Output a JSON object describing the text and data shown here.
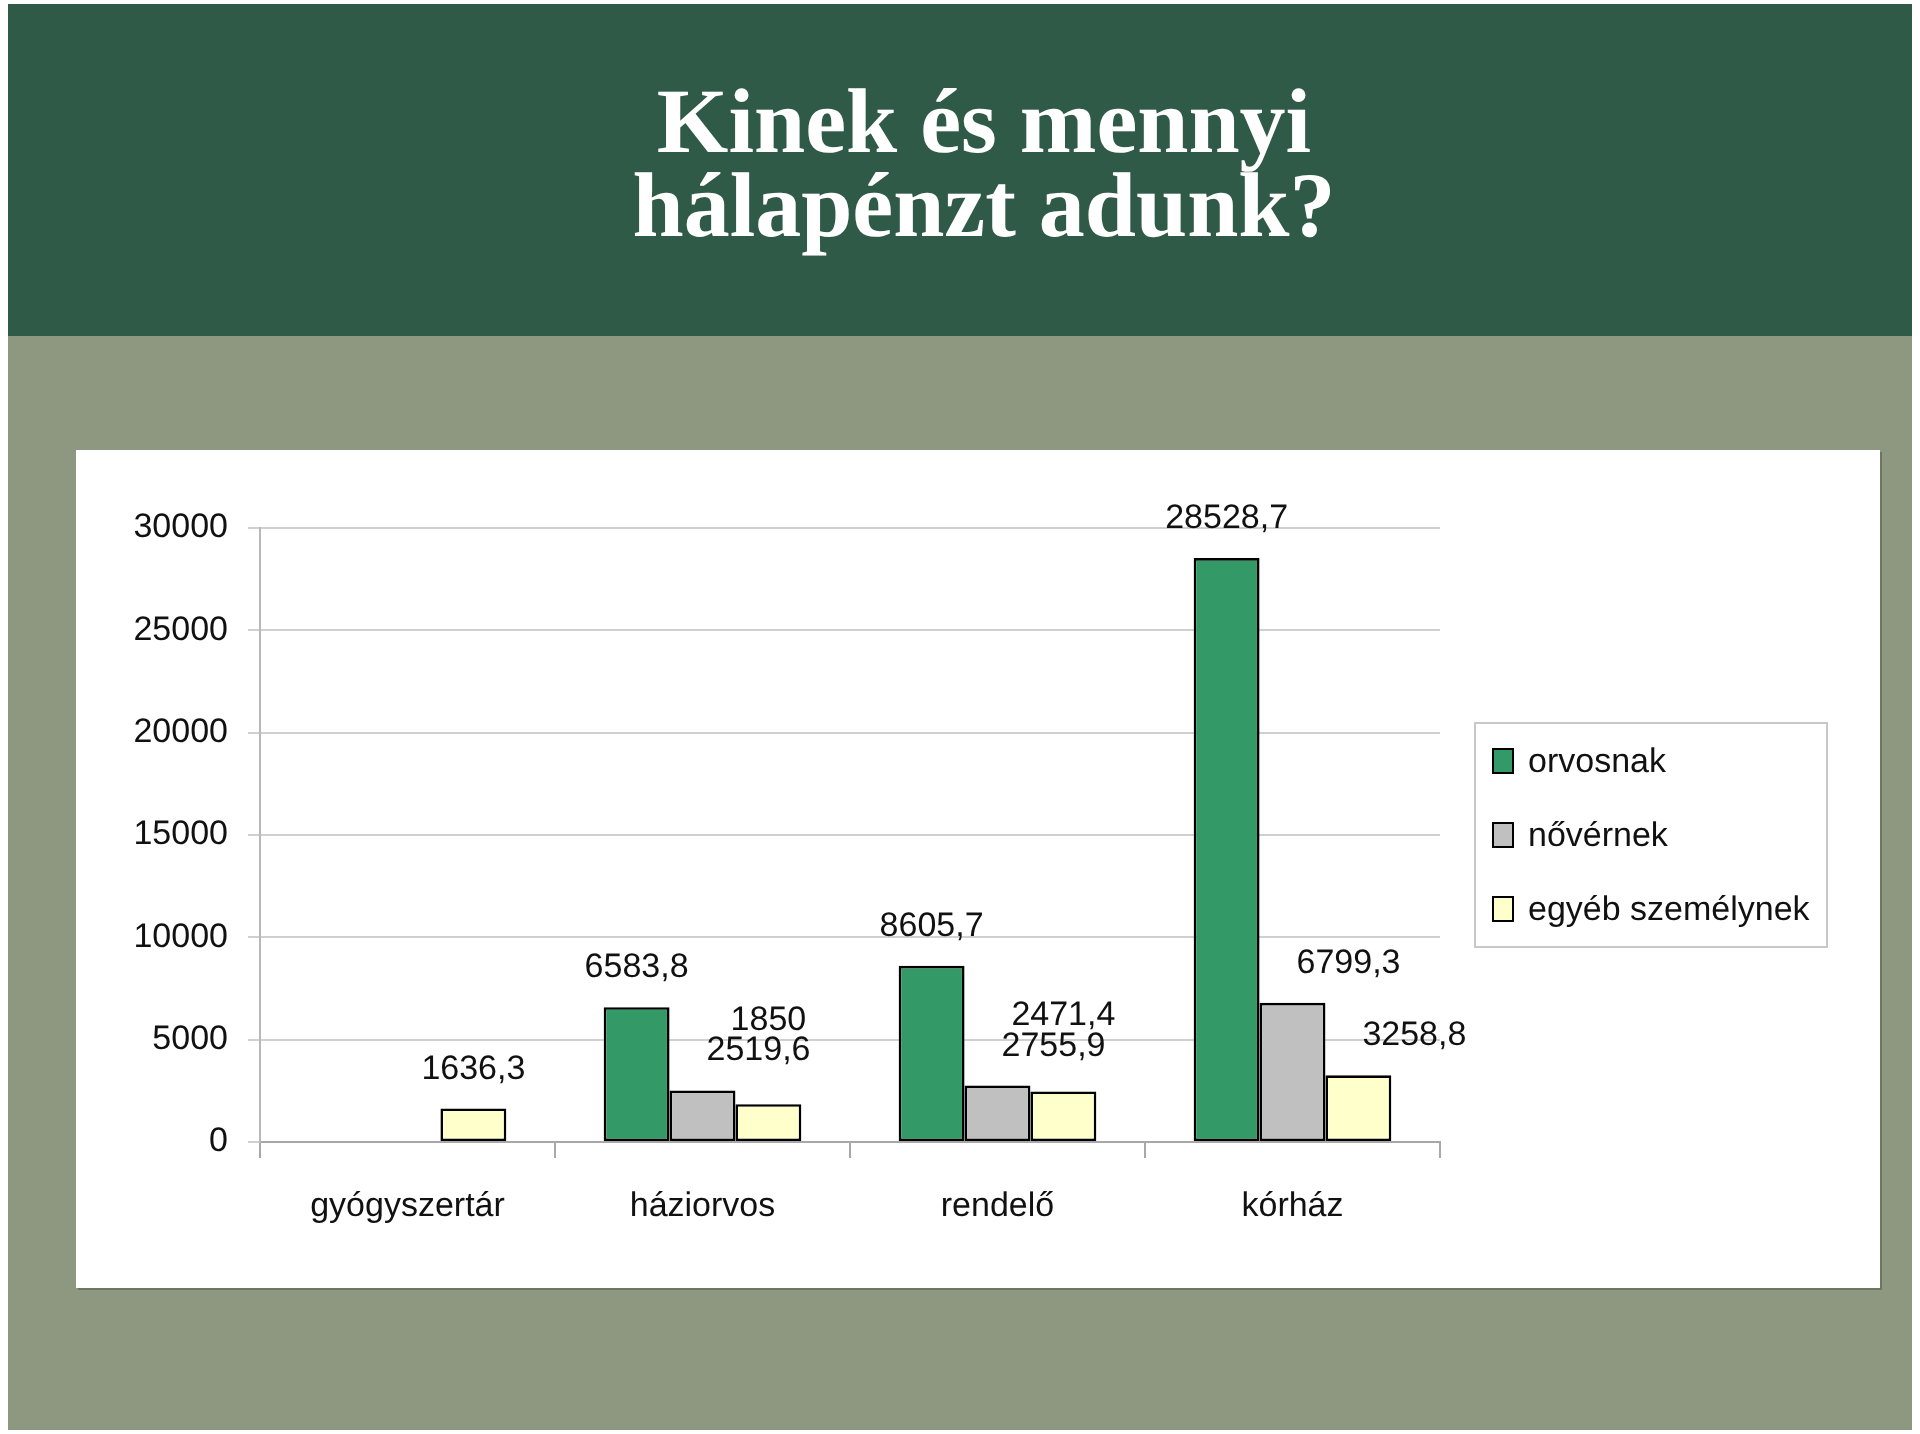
{
  "chart_data": {
    "type": "bar",
    "title": "Kinek és mennyi hálapénzt adunk?",
    "categories": [
      "gyógyszertár",
      "háziorvos",
      "rendelő",
      "kórház"
    ],
    "series": [
      {
        "name": "orvosnak",
        "color": "#339966",
        "values": [
          null,
          6583.8,
          8605.7,
          28528.7
        ],
        "value_labels": [
          null,
          "6583,8",
          "8605,7",
          "28528,7"
        ]
      },
      {
        "name": "nővérnek",
        "color": "#c0c0c0",
        "values": [
          null,
          2519.6,
          2755.9,
          6799.3
        ],
        "value_labels": [
          null,
          "2519,6",
          "2755,9",
          "6799,3"
        ]
      },
      {
        "name": "egyéb személynek",
        "color": "#ffffcc",
        "values": [
          1636.3,
          1850,
          2471.4,
          3258.8
        ],
        "value_labels": [
          "1636,3",
          "1850",
          "2471,4",
          "3258,8"
        ]
      }
    ],
    "ylim": [
      0,
      30000
    ],
    "yticks": [
      0,
      5000,
      10000,
      15000,
      20000,
      25000,
      30000
    ],
    "grid": "y",
    "legend": "right"
  }
}
